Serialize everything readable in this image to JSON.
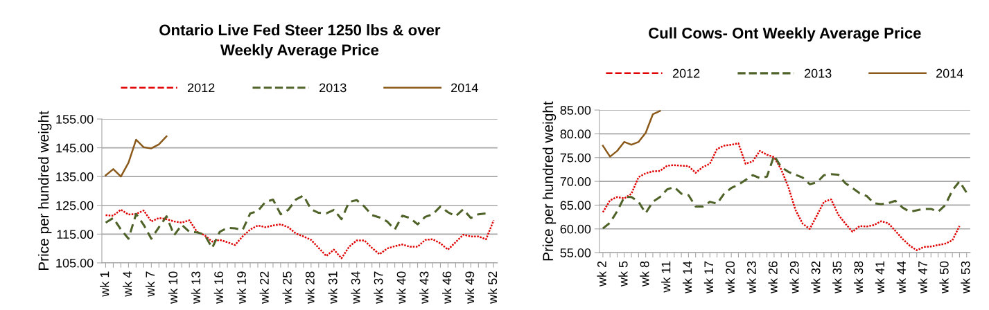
{
  "chart_data": [
    {
      "type": "line",
      "title": "Ontario Live Fed Steer 1250 lbs & over\nWeekly Average Price",
      "ylabel": "Price per hundred weight",
      "categories": [
        "wk 1",
        null,
        null,
        "wk 4",
        null,
        null,
        "wk 7",
        null,
        null,
        "wk 10",
        null,
        null,
        "wk 13",
        null,
        null,
        "wk 16",
        null,
        null,
        "wk 19",
        null,
        null,
        "wk 22",
        null,
        null,
        "wk 25",
        null,
        null,
        "wk 28",
        null,
        null,
        "wk 31",
        null,
        null,
        "wk 34",
        null,
        null,
        "wk 37",
        null,
        null,
        "wk 40",
        null,
        null,
        "wk 43",
        null,
        null,
        "wk 46",
        null,
        null,
        "wk 49",
        null,
        null,
        "wk 52"
      ],
      "ylim": [
        105,
        155
      ],
      "yticks": [
        {
          "value": 105,
          "label": "105.00"
        },
        {
          "value": 115,
          "label": "115.00"
        },
        {
          "value": 125,
          "label": "125.00"
        },
        {
          "value": 135,
          "label": "135.00"
        },
        {
          "value": 145,
          "label": "145.00"
        },
        {
          "value": 155,
          "label": "155.00"
        }
      ],
      "grid": "y",
      "legend": "top",
      "series": [
        {
          "name": "2012",
          "color": "#e00000",
          "line_style": "dotted",
          "values": [
            121.6,
            121.4,
            123.5,
            121.8,
            122,
            123.2,
            119.4,
            120.6,
            120.2,
            119.4,
            119,
            119.8,
            115.8,
            114.6,
            112.4,
            113,
            112.2,
            111.2,
            114.2,
            116.6,
            118,
            117.4,
            118,
            118.4,
            117.4,
            115.2,
            114.2,
            113,
            110.2,
            107.4,
            109.6,
            106.6,
            110.6,
            112.8,
            112.8,
            110.2,
            108,
            110,
            110.8,
            111.4,
            110.6,
            110.6,
            113,
            113.2,
            111.8,
            109.6,
            112.2,
            114.8,
            114.2,
            114.2,
            113.2,
            119.8
          ]
        },
        {
          "name": "2013",
          "color": "#4f6228",
          "line_style": "dashed",
          "values": [
            119,
            120.6,
            116.6,
            113.4,
            122,
            118.2,
            113.4,
            117.4,
            121.2,
            114.6,
            118.2,
            115.8,
            115.6,
            114.8,
            110.2,
            115.8,
            117.2,
            117,
            116.4,
            122.2,
            123,
            126.2,
            127,
            121.9,
            123.4,
            127,
            128.4,
            123.6,
            122.4,
            122.2,
            123.4,
            120.2,
            126.2,
            126.8,
            124.6,
            121.6,
            120.8,
            119.4,
            116.6,
            121.4,
            120.6,
            118.4,
            121,
            121.9,
            124.6,
            122.6,
            121.2,
            123.6,
            120.6,
            121.9,
            122.2,
            null
          ]
        },
        {
          "name": "2014",
          "color": "#8b5a1b",
          "line_style": "solid",
          "values": [
            135.4,
            137.6,
            135,
            139.8,
            147.8,
            145.2,
            144.8,
            146.2,
            149,
            null,
            null,
            null,
            null,
            null,
            null,
            null,
            null,
            null,
            null,
            null,
            null,
            null,
            null,
            null,
            null,
            null,
            null,
            null,
            null,
            null,
            null,
            null,
            null,
            null,
            null,
            null,
            null,
            null,
            null,
            null,
            null,
            null,
            null,
            null,
            null,
            null,
            null,
            null,
            null,
            null,
            null,
            null
          ]
        }
      ]
    },
    {
      "type": "line",
      "title": "Cull Cows- Ont Weekly Average Price",
      "ylabel": "Price per hundred weight",
      "categories": [
        "wk 2",
        null,
        null,
        "wk 5",
        null,
        null,
        "wk 8",
        null,
        null,
        "wk 11",
        null,
        null,
        "wk 14",
        null,
        null,
        "wk 17",
        null,
        null,
        "wk 20",
        null,
        null,
        "wk 23",
        null,
        null,
        "wk 26",
        null,
        null,
        "wk 29",
        null,
        null,
        "wk 32",
        null,
        null,
        "wk 35",
        null,
        null,
        "wk 38",
        null,
        null,
        "wk 41",
        null,
        null,
        "wk 44",
        null,
        null,
        "wk 47",
        null,
        null,
        "wk 50",
        null,
        null,
        "wk 53"
      ],
      "ylim": [
        55,
        85
      ],
      "yticks": [
        {
          "value": 55,
          "label": "55.00"
        },
        {
          "value": 60,
          "label": "60.00"
        },
        {
          "value": 65,
          "label": "65.00"
        },
        {
          "value": 70,
          "label": "70.00"
        },
        {
          "value": 75,
          "label": "75.00"
        },
        {
          "value": 80,
          "label": "80.00"
        },
        {
          "value": 85,
          "label": "85.00"
        }
      ],
      "grid": "y",
      "legend": "top",
      "series": [
        {
          "name": "2012",
          "color": "#e00000",
          "line_style": "dotted",
          "values": [
            63.5,
            66,
            66.7,
            66.4,
            67.4,
            70.9,
            71.7,
            72.1,
            72.2,
            73.3,
            73.4,
            73.3,
            73.2,
            71.8,
            73,
            73.7,
            76.8,
            77.5,
            77.7,
            78,
            73.7,
            74.2,
            76.4,
            75.6,
            75.1,
            72.5,
            68.8,
            64,
            61.1,
            60,
            62.8,
            65.7,
            66.2,
            63,
            61.1,
            59.4,
            60.6,
            60.5,
            60.8,
            61.6,
            61.2,
            59.6,
            57.9,
            56.5,
            55.5,
            56.2,
            56.3,
            56.6,
            56.9,
            57.6,
            60.6,
            null
          ]
        },
        {
          "name": "2013",
          "color": "#4f6228",
          "line_style": "dashed",
          "values": [
            60.1,
            61.3,
            63.7,
            66.7,
            66.7,
            65.7,
            63.3,
            65.7,
            66.7,
            68.3,
            68.8,
            67.4,
            67.1,
            64.7,
            64.7,
            65.7,
            65.3,
            67.4,
            68.6,
            69.3,
            70.3,
            71.3,
            70.7,
            71,
            75.4,
            73,
            72,
            71.4,
            70.8,
            69.4,
            69.8,
            71.3,
            71.5,
            71.4,
            69.6,
            68.6,
            67.5,
            66.9,
            65.4,
            65.2,
            65.4,
            65.9,
            64.5,
            63.6,
            63.9,
            64.2,
            64.2,
            63.6,
            65,
            68.1,
            70,
            67.6
          ]
        },
        {
          "name": "2014",
          "color": "#8b5a1b",
          "line_style": "solid",
          "values": [
            77.5,
            75.2,
            76.4,
            78.3,
            77.7,
            78.3,
            80.2,
            84.1,
            84.8,
            null,
            null,
            null,
            null,
            null,
            null,
            null,
            null,
            null,
            null,
            null,
            null,
            null,
            null,
            null,
            null,
            null,
            null,
            null,
            null,
            null,
            null,
            null,
            null,
            null,
            null,
            null,
            null,
            null,
            null,
            null,
            null,
            null,
            null,
            null,
            null,
            null,
            null,
            null,
            null,
            null,
            null,
            null
          ]
        }
      ]
    }
  ]
}
